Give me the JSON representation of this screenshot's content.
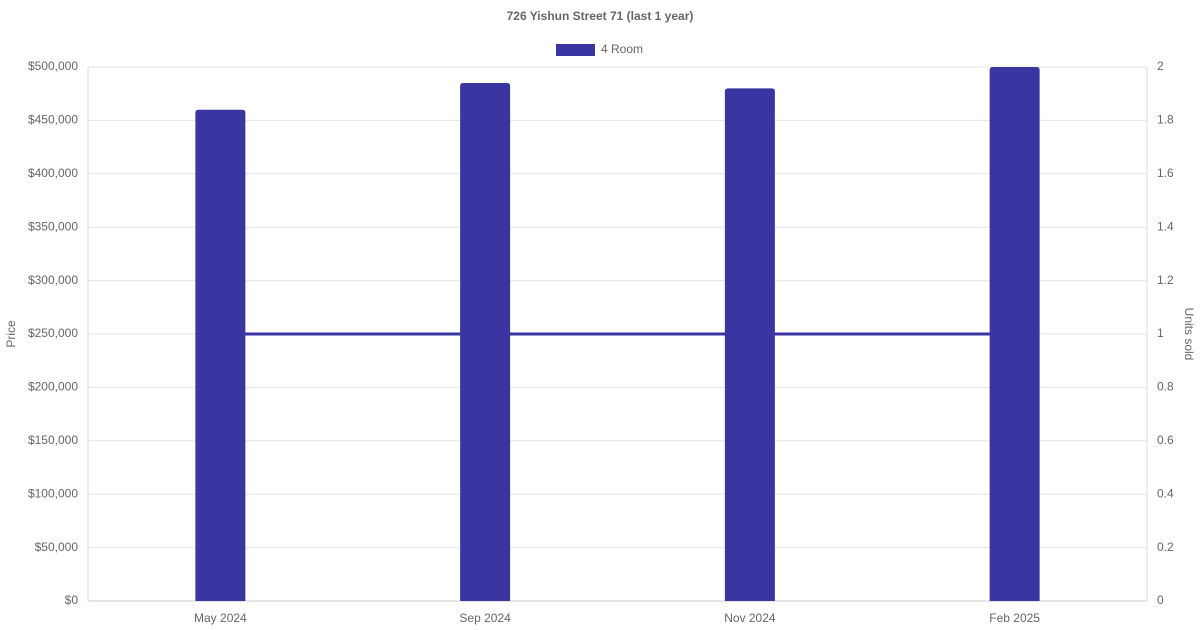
{
  "chart_data": {
    "type": "bar",
    "title": "726 Yishun Street 71 (last 1 year)",
    "categories": [
      "May 2024",
      "Sep 2024",
      "Nov 2024",
      "Feb 2025"
    ],
    "series": [
      {
        "name": "4 Room",
        "type": "bar",
        "color": "#3a35a0",
        "values": [
          460000,
          485000,
          480000,
          500000
        ]
      },
      {
        "type": "line",
        "axis": "y2",
        "color": "#3a35a0",
        "values": [
          1,
          1,
          1,
          1
        ]
      }
    ],
    "ylabel": "Price",
    "y2label": "Units sold",
    "ylim": [
      0,
      500000
    ],
    "yticks": [
      {
        "value": 0,
        "label": "$0"
      },
      {
        "value": 50000,
        "label": "$50,000"
      },
      {
        "value": 100000,
        "label": "$100,000"
      },
      {
        "value": 150000,
        "label": "$150,000"
      },
      {
        "value": 200000,
        "label": "$200,000"
      },
      {
        "value": 250000,
        "label": "$250,000"
      },
      {
        "value": 300000,
        "label": "$300,000"
      },
      {
        "value": 350000,
        "label": "$350,000"
      },
      {
        "value": 400000,
        "label": "$400,000"
      },
      {
        "value": 450000,
        "label": "$450,000"
      },
      {
        "value": 500000,
        "label": "$500,000"
      }
    ],
    "y2lim": [
      0,
      2
    ],
    "y2ticks": [
      0,
      0.2,
      0.4,
      0.6,
      0.8,
      1,
      1.2,
      1.4,
      1.6,
      1.8,
      2
    ],
    "grid": true,
    "legend": "top"
  }
}
